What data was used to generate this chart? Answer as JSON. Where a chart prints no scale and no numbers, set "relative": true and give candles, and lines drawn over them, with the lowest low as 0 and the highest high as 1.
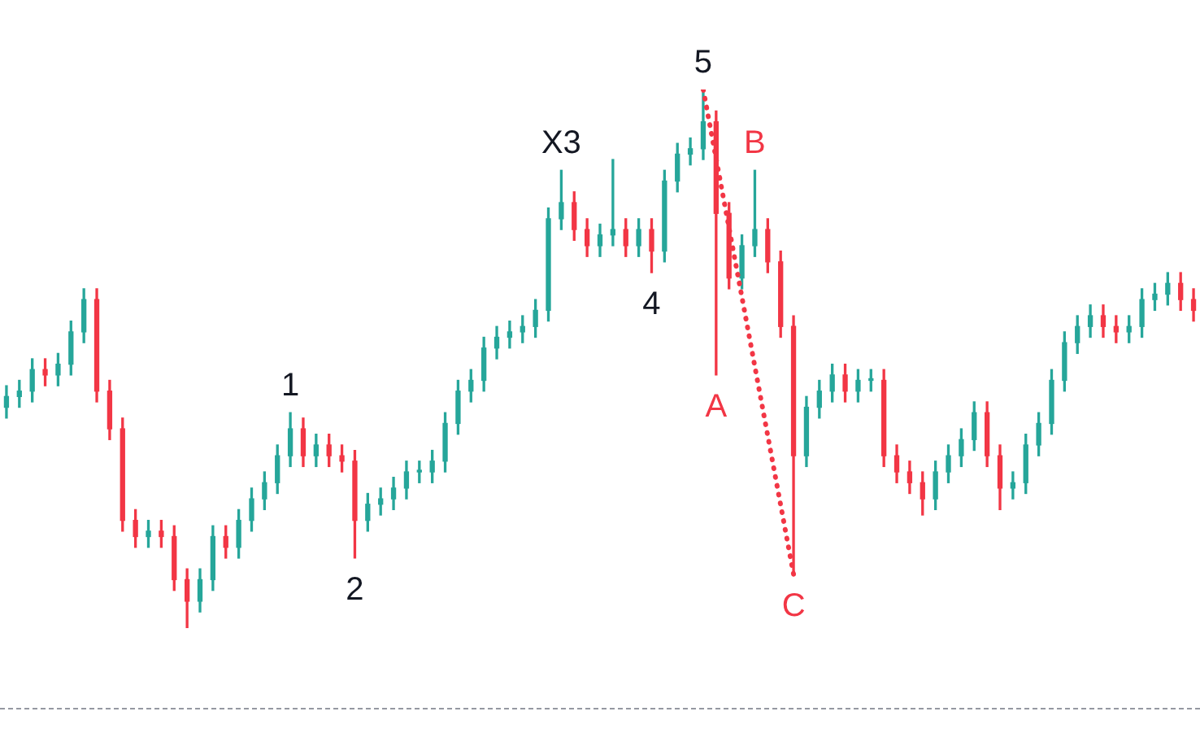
{
  "chart_data": {
    "type": "candlestick",
    "relative": true,
    "categories": [
      null,
      null,
      null,
      null,
      null,
      null,
      null,
      null,
      null,
      null,
      null,
      null,
      null,
      null,
      null,
      null,
      null,
      null,
      null,
      null,
      null,
      null,
      null,
      null,
      null,
      null,
      null,
      null,
      null,
      null,
      null,
      null,
      null,
      null,
      null,
      null,
      null,
      null,
      null,
      null,
      null,
      null,
      null,
      null,
      null,
      null,
      null,
      null,
      null,
      null,
      null,
      null,
      null,
      null,
      null,
      null,
      null,
      null,
      null,
      null,
      null,
      null,
      null,
      null,
      null,
      null,
      null,
      null,
      null,
      null,
      null,
      null,
      null,
      null,
      null,
      null,
      null,
      null,
      null,
      null,
      null,
      null,
      null,
      null,
      null,
      null,
      null,
      null,
      null,
      null,
      null,
      null,
      null
    ],
    "colors": [
      "#26a69a",
      "#26a69a",
      "#26a69a",
      "#f23645",
      "#26a69a",
      "#26a69a",
      "#26a69a",
      "#f23645",
      "#f23645",
      "#f23645",
      "#f23645",
      "#26a69a",
      "#f23645",
      "#f23645",
      "#f23645",
      "#26a69a",
      "#26a69a",
      "#f23645",
      "#26a69a",
      "#26a69a",
      "#26a69a",
      "#26a69a",
      "#26a69a",
      "#f23645",
      "#26a69a",
      "#f23645",
      "#f23645",
      "#f23645",
      "#26a69a",
      "#26a69a",
      "#26a69a",
      "#26a69a",
      "#26a69a",
      "#26a69a",
      "#26a69a",
      "#26a69a",
      "#26a69a",
      "#26a69a",
      "#26a69a",
      "#26a69a",
      "#26a69a",
      "#26a69a",
      "#26a69a",
      "#26a69a",
      "#f23645",
      "#f23645",
      "#26a69a",
      "#26a69a",
      "#f23645",
      "#26a69a",
      "#f23645",
      "#26a69a",
      "#26a69a",
      "#26a69a",
      "#26a69a",
      "#f23645",
      "#f23645",
      "#26a69a",
      "#26a69a",
      "#f23645",
      "#f23645",
      "#f23645",
      "#26a69a",
      "#26a69a",
      "#26a69a",
      "#f23645",
      "#26a69a",
      "#26a69a",
      "#f23645",
      "#f23645",
      "#f23645",
      "#f23645",
      "#26a69a",
      "#26a69a",
      "#26a69a",
      "#26a69a",
      "#f23645",
      "#f23645",
      "#26a69a",
      "#26a69a",
      "#26a69a",
      "#26a69a",
      "#26a69a",
      "#26a69a",
      "#26a69a",
      "#f23645",
      "#f23645",
      "#26a69a",
      "#26a69a",
      "#26a69a",
      "#26a69a",
      "#f23645",
      "#f23645"
    ],
    "ohlc": [
      [
        0.41,
        0.45,
        0.39,
        0.43
      ],
      [
        0.43,
        0.46,
        0.41,
        0.44
      ],
      [
        0.44,
        0.5,
        0.42,
        0.48
      ],
      [
        0.48,
        0.5,
        0.45,
        0.47
      ],
      [
        0.47,
        0.51,
        0.45,
        0.49
      ],
      [
        0.49,
        0.57,
        0.47,
        0.55
      ],
      [
        0.55,
        0.63,
        0.53,
        0.61
      ],
      [
        0.61,
        0.63,
        0.42,
        0.44
      ],
      [
        0.44,
        0.46,
        0.35,
        0.37
      ],
      [
        0.37,
        0.39,
        0.18,
        0.2
      ],
      [
        0.2,
        0.22,
        0.15,
        0.17
      ],
      [
        0.17,
        0.2,
        0.15,
        0.18
      ],
      [
        0.18,
        0.2,
        0.15,
        0.17
      ],
      [
        0.17,
        0.19,
        0.07,
        0.09
      ],
      [
        0.09,
        0.11,
        0.0,
        0.05
      ],
      [
        0.05,
        0.11,
        0.03,
        0.09
      ],
      [
        0.09,
        0.19,
        0.07,
        0.17
      ],
      [
        0.17,
        0.19,
        0.13,
        0.15
      ],
      [
        0.15,
        0.22,
        0.13,
        0.2
      ],
      [
        0.2,
        0.26,
        0.18,
        0.24
      ],
      [
        0.24,
        0.29,
        0.22,
        0.27
      ],
      [
        0.27,
        0.34,
        0.25,
        0.32
      ],
      [
        0.32,
        0.4,
        0.3,
        0.37
      ],
      [
        0.37,
        0.39,
        0.3,
        0.32
      ],
      [
        0.32,
        0.36,
        0.3,
        0.34
      ],
      [
        0.34,
        0.36,
        0.3,
        0.32
      ],
      [
        0.32,
        0.34,
        0.29,
        0.31
      ],
      [
        0.31,
        0.33,
        0.13,
        0.2
      ],
      [
        0.2,
        0.25,
        0.18,
        0.23
      ],
      [
        0.23,
        0.26,
        0.21,
        0.24
      ],
      [
        0.24,
        0.28,
        0.22,
        0.26
      ],
      [
        0.26,
        0.31,
        0.24,
        0.29
      ],
      [
        0.29,
        0.31,
        0.27,
        0.29
      ],
      [
        0.29,
        0.33,
        0.27,
        0.31
      ],
      [
        0.31,
        0.4,
        0.29,
        0.38
      ],
      [
        0.38,
        0.46,
        0.36,
        0.44
      ],
      [
        0.44,
        0.48,
        0.42,
        0.46
      ],
      [
        0.46,
        0.54,
        0.44,
        0.52
      ],
      [
        0.52,
        0.56,
        0.5,
        0.54
      ],
      [
        0.54,
        0.57,
        0.52,
        0.55
      ],
      [
        0.55,
        0.58,
        0.53,
        0.56
      ],
      [
        0.56,
        0.61,
        0.54,
        0.59
      ],
      [
        0.59,
        0.78,
        0.57,
        0.76
      ],
      [
        0.76,
        0.85,
        0.74,
        0.79
      ],
      [
        0.79,
        0.81,
        0.72,
        0.74
      ],
      [
        0.74,
        0.76,
        0.69,
        0.71
      ],
      [
        0.71,
        0.75,
        0.69,
        0.73
      ],
      [
        0.73,
        0.87,
        0.71,
        0.74
      ],
      [
        0.74,
        0.76,
        0.69,
        0.71
      ],
      [
        0.71,
        0.76,
        0.69,
        0.74
      ],
      [
        0.74,
        0.76,
        0.66,
        0.7
      ],
      [
        0.7,
        0.85,
        0.68,
        0.83
      ],
      [
        0.83,
        0.9,
        0.81,
        0.88
      ],
      [
        0.88,
        0.91,
        0.86,
        0.89
      ],
      [
        0.89,
        1.0,
        0.87,
        0.94
      ],
      [
        0.94,
        0.96,
        0.47,
        0.77
      ],
      [
        0.77,
        0.79,
        0.63,
        0.65
      ],
      [
        0.65,
        0.73,
        0.63,
        0.71
      ],
      [
        0.71,
        0.85,
        0.69,
        0.74
      ],
      [
        0.74,
        0.76,
        0.66,
        0.68
      ],
      [
        0.68,
        0.7,
        0.54,
        0.56
      ],
      [
        0.56,
        0.58,
        0.1,
        0.32
      ],
      [
        0.32,
        0.43,
        0.3,
        0.41
      ],
      [
        0.41,
        0.46,
        0.39,
        0.44
      ],
      [
        0.44,
        0.49,
        0.42,
        0.47
      ],
      [
        0.47,
        0.49,
        0.42,
        0.44
      ],
      [
        0.44,
        0.48,
        0.42,
        0.46
      ],
      [
        0.46,
        0.48,
        0.44,
        0.46
      ],
      [
        0.46,
        0.48,
        0.3,
        0.32
      ],
      [
        0.32,
        0.34,
        0.27,
        0.29
      ],
      [
        0.29,
        0.31,
        0.25,
        0.27
      ],
      [
        0.27,
        0.29,
        0.21,
        0.24
      ],
      [
        0.24,
        0.31,
        0.22,
        0.29
      ],
      [
        0.29,
        0.34,
        0.27,
        0.32
      ],
      [
        0.32,
        0.37,
        0.3,
        0.35
      ],
      [
        0.35,
        0.42,
        0.33,
        0.4
      ],
      [
        0.4,
        0.42,
        0.3,
        0.32
      ],
      [
        0.32,
        0.34,
        0.22,
        0.26
      ],
      [
        0.26,
        0.29,
        0.24,
        0.27
      ],
      [
        0.27,
        0.36,
        0.25,
        0.34
      ],
      [
        0.34,
        0.4,
        0.32,
        0.38
      ],
      [
        0.38,
        0.48,
        0.36,
        0.46
      ],
      [
        0.46,
        0.55,
        0.44,
        0.53
      ],
      [
        0.53,
        0.58,
        0.51,
        0.56
      ],
      [
        0.56,
        0.6,
        0.54,
        0.58
      ],
      [
        0.58,
        0.6,
        0.54,
        0.56
      ],
      [
        0.56,
        0.58,
        0.53,
        0.55
      ],
      [
        0.55,
        0.58,
        0.53,
        0.56
      ],
      [
        0.56,
        0.63,
        0.54,
        0.61
      ],
      [
        0.61,
        0.64,
        0.59,
        0.62
      ],
      [
        0.62,
        0.66,
        0.6,
        0.64
      ],
      [
        0.64,
        0.66,
        0.59,
        0.61
      ],
      [
        0.61,
        0.63,
        0.57,
        0.59
      ]
    ],
    "series": [
      {
        "type": "line",
        "color": "#f23645",
        "line_style": "dotted",
        "values": [
          null,
          null,
          null,
          null,
          null,
          null,
          null,
          null,
          null,
          null,
          null,
          null,
          null,
          null,
          null,
          null,
          null,
          null,
          null,
          null,
          null,
          null,
          null,
          null,
          null,
          null,
          null,
          null,
          null,
          null,
          null,
          null,
          null,
          null,
          null,
          null,
          null,
          null,
          null,
          null,
          null,
          null,
          null,
          null,
          null,
          null,
          null,
          null,
          null,
          null,
          null,
          null,
          null,
          null,
          1.0,
          null,
          null,
          null,
          null,
          null,
          null,
          0.1,
          null,
          null,
          null,
          null,
          null,
          null,
          null,
          null,
          null,
          null,
          null,
          null,
          null,
          null,
          null,
          null,
          null,
          null,
          null,
          null,
          null,
          null,
          null,
          null,
          null,
          null,
          null,
          null,
          null,
          null,
          null
        ]
      }
    ],
    "annotations": [
      {
        "text": "1",
        "y": 0.4
      },
      {
        "text": "2",
        "y": 0.13
      },
      {
        "text": "X3",
        "y": 0.85
      },
      {
        "text": "4",
        "y": 0.66
      },
      {
        "text": "5",
        "y": 1.0
      },
      {
        "text": "A",
        "y": 0.47
      },
      {
        "text": "B",
        "y": 0.85
      },
      {
        "text": "C",
        "y": 0.1
      }
    ]
  }
}
